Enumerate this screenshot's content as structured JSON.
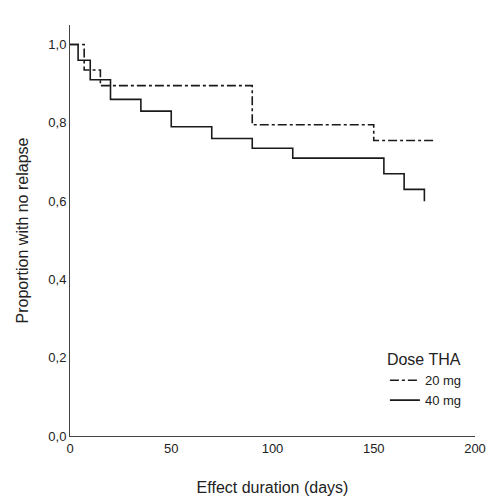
{
  "chart_data": {
    "type": "line",
    "x_label": "Effect duration (days)",
    "y_label": "Proportion with no relapse",
    "legend_title": "Dose THA",
    "legend": "lower right",
    "grid": false,
    "xlim": [
      0,
      200
    ],
    "ylim": [
      0.0,
      1.05
    ],
    "xticks": [
      0,
      50,
      100,
      150,
      200
    ],
    "yticks": [
      {
        "value": 0.0,
        "label": "0,0"
      },
      {
        "value": 0.2,
        "label": "0,2"
      },
      {
        "value": 0.4,
        "label": "0,4"
      },
      {
        "value": 0.6,
        "label": "0,6"
      },
      {
        "value": 0.8,
        "label": "0,8"
      },
      {
        "value": 1.0,
        "label": "1,0"
      }
    ],
    "series": [
      {
        "name": "20 mg",
        "color": "#1a1a1a",
        "line_style": "dashdot",
        "x": [
          0,
          7,
          7,
          15,
          15,
          90,
          90,
          150,
          150,
          180
        ],
        "values": [
          1.0,
          1.0,
          0.935,
          0.935,
          0.895,
          0.895,
          0.795,
          0.795,
          0.755,
          0.755
        ]
      },
      {
        "name": "40 mg",
        "color": "#1a1a1a",
        "line_style": "solid",
        "x": [
          0,
          4,
          4,
          10,
          10,
          20,
          20,
          35,
          35,
          50,
          50,
          70,
          70,
          90,
          90,
          110,
          110,
          130,
          130,
          155,
          155,
          165,
          165,
          175,
          175
        ],
        "values": [
          1.0,
          1.0,
          0.96,
          0.96,
          0.91,
          0.91,
          0.86,
          0.86,
          0.83,
          0.83,
          0.79,
          0.79,
          0.76,
          0.76,
          0.735,
          0.735,
          0.71,
          0.71,
          0.71,
          0.71,
          0.67,
          0.67,
          0.63,
          0.63,
          0.6
        ]
      }
    ]
  }
}
